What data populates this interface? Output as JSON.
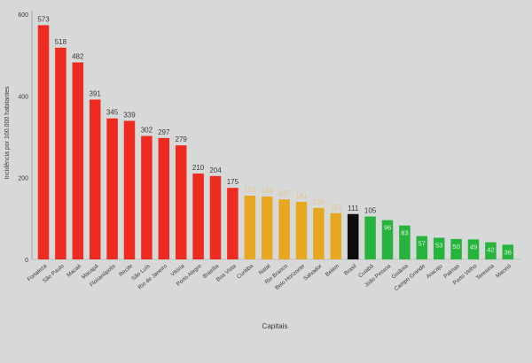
{
  "chart_data": {
    "type": "bar",
    "title": "",
    "xlabel": "Capitais",
    "ylabel": "Incidência por 100.000 habitantes",
    "ylim": [
      0,
      600
    ],
    "yticks": [
      0,
      200,
      400,
      600
    ],
    "grid": false,
    "categories": [
      "Fortaleza",
      "São Paulo",
      "Macaé",
      "Macapá",
      "Florianópolis",
      "Recife",
      "São Luís",
      "Rio de Janeiro",
      "Vitória",
      "Porto Alegre",
      "Brasília",
      "Boa Vista",
      "Curitiba",
      "Natal",
      "Rio Branco",
      "Belo Horizonte",
      "Salvador",
      "Belém",
      "Brasil",
      "Cuiabá",
      "João Pessoa",
      "Goiânia",
      "Campo Grande",
      "Aracaju",
      "Palmas",
      "Porto Velho",
      "Teresina",
      "Maceió"
    ],
    "values": [
      573,
      518,
      482,
      391,
      345,
      339,
      302,
      297,
      279,
      210,
      204,
      175,
      156,
      154,
      147,
      141,
      126,
      113,
      111,
      105,
      96,
      83,
      57,
      53,
      50,
      49,
      42,
      36
    ],
    "groups": [
      "high",
      "high",
      "high",
      "high",
      "high",
      "high",
      "high",
      "high",
      "high",
      "high",
      "high",
      "high",
      "mid",
      "mid",
      "mid",
      "mid",
      "mid",
      "mid",
      "ref",
      "low",
      "low",
      "low",
      "low",
      "low",
      "low",
      "low",
      "low",
      "low"
    ],
    "colors": {
      "high": "#ee2a21",
      "mid": "#e7a820",
      "ref": "#0d0d0d",
      "low": "#27b43c",
      "label_on_bar": "#dff3e2",
      "label_dark": "#3a3a3a",
      "label_mid": "#e8c488"
    }
  }
}
